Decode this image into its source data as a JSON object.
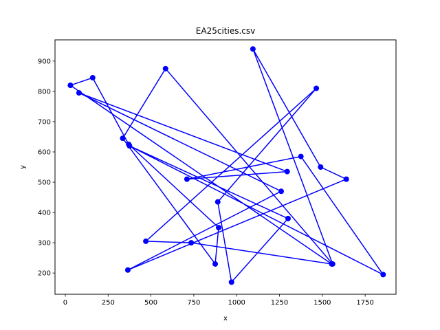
{
  "chart_data": {
    "type": "line",
    "title": "EA25cities.csv",
    "xlabel": "x",
    "ylabel": "y",
    "xlim": [
      -60,
      1930
    ],
    "ylim": [
      130,
      970
    ],
    "xticks": [
      0,
      250,
      500,
      750,
      1000,
      1250,
      1500,
      1750
    ],
    "yticks": [
      200,
      300,
      400,
      500,
      600,
      700,
      800,
      900
    ],
    "grid": false,
    "series": [
      {
        "color": "#0000ff",
        "marker": "circle",
        "x": [
          30,
          160,
          370,
          895,
          875,
          335,
          585,
          1560,
          1095,
          1490,
          1640,
          365,
          1260,
          80,
          1295,
          710,
          1375,
          1855,
          375,
          1300,
          970,
          890,
          1465,
          470,
          735,
          1555,
          30
        ],
        "y": [
          820,
          845,
          625,
          350,
          230,
          645,
          875,
          230,
          940,
          550,
          510,
          210,
          470,
          795,
          535,
          510,
          585,
          195,
          620,
          380,
          170,
          435,
          810,
          305,
          300,
          230,
          820
        ]
      }
    ]
  }
}
